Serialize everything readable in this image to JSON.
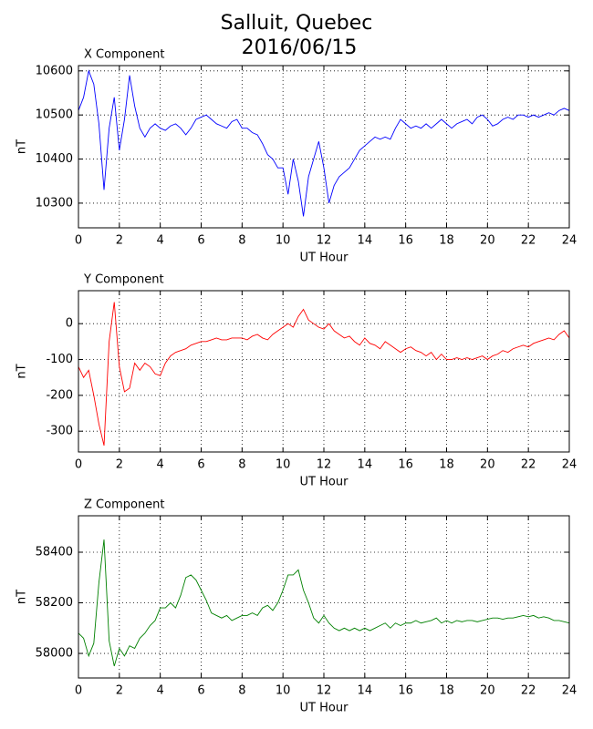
{
  "title": "Salluit, Quebec",
  "subtitle": "2016/06/15",
  "chart_data": [
    {
      "type": "line",
      "title": "X Component",
      "xlabel": "UT Hour",
      "ylabel": "nT",
      "x": [
        0,
        0.25,
        0.5,
        0.75,
        1,
        1.25,
        1.5,
        1.75,
        2,
        2.25,
        2.5,
        2.75,
        3,
        3.25,
        3.5,
        3.75,
        4,
        4.25,
        4.5,
        4.75,
        5,
        5.25,
        5.5,
        5.75,
        6,
        6.25,
        6.5,
        6.75,
        7,
        7.25,
        7.5,
        7.75,
        8,
        8.25,
        8.5,
        8.75,
        9,
        9.25,
        9.5,
        9.75,
        10,
        10.25,
        10.5,
        10.75,
        11,
        11.25,
        11.5,
        11.75,
        12,
        12.25,
        12.5,
        12.75,
        13,
        13.25,
        13.5,
        13.75,
        14,
        14.25,
        14.5,
        14.75,
        15,
        15.25,
        15.5,
        15.75,
        16,
        16.25,
        16.5,
        16.75,
        17,
        17.25,
        17.5,
        17.75,
        18,
        18.25,
        18.5,
        18.75,
        19,
        19.25,
        19.5,
        19.75,
        20,
        20.25,
        20.5,
        20.75,
        21,
        21.25,
        21.5,
        21.75,
        22,
        22.25,
        22.5,
        22.75,
        23,
        23.25,
        23.5,
        23.75,
        24
      ],
      "series": [
        {
          "color": "#0000ff",
          "values": [
            10510,
            10540,
            10600,
            10570,
            10480,
            10330,
            10470,
            10540,
            10420,
            10490,
            10590,
            10520,
            10470,
            10450,
            10470,
            10480,
            10470,
            10465,
            10475,
            10480,
            10470,
            10455,
            10470,
            10490,
            10495,
            10500,
            10490,
            10480,
            10475,
            10470,
            10485,
            10490,
            10470,
            10470,
            10460,
            10455,
            10435,
            10410,
            10400,
            10380,
            10380,
            10320,
            10400,
            10350,
            10270,
            10360,
            10400,
            10440,
            10380,
            10300,
            10340,
            10360,
            10370,
            10380,
            10400,
            10420,
            10430,
            10440,
            10450,
            10445,
            10450,
            10445,
            10470,
            10490,
            10480,
            10470,
            10475,
            10470,
            10480,
            10470,
            10480,
            10490,
            10480,
            10470,
            10480,
            10485,
            10490,
            10480,
            10495,
            10500,
            10490,
            10475,
            10480,
            10490,
            10495,
            10490,
            10500,
            10500,
            10495,
            10500,
            10495,
            10500,
            10505,
            10500,
            10510,
            10515,
            10510
          ]
        }
      ],
      "xlim": [
        0,
        24
      ],
      "xticks": [
        0,
        2,
        4,
        6,
        8,
        10,
        12,
        14,
        16,
        18,
        20,
        22,
        24
      ],
      "ylim": [
        10244,
        10612
      ],
      "yticks": [
        10300,
        10400,
        10500,
        10600
      ],
      "grid": true
    },
    {
      "type": "line",
      "title": "Y Component",
      "xlabel": "UT Hour",
      "ylabel": "nT",
      "x": [
        0,
        0.25,
        0.5,
        0.75,
        1,
        1.25,
        1.5,
        1.75,
        2,
        2.25,
        2.5,
        2.75,
        3,
        3.25,
        3.5,
        3.75,
        4,
        4.25,
        4.5,
        4.75,
        5,
        5.25,
        5.5,
        5.75,
        6,
        6.25,
        6.5,
        6.75,
        7,
        7.25,
        7.5,
        7.75,
        8,
        8.25,
        8.5,
        8.75,
        9,
        9.25,
        9.5,
        9.75,
        10,
        10.25,
        10.5,
        10.75,
        11,
        11.25,
        11.5,
        11.75,
        12,
        12.25,
        12.5,
        12.75,
        13,
        13.25,
        13.5,
        13.75,
        14,
        14.25,
        14.5,
        14.75,
        15,
        15.25,
        15.5,
        15.75,
        16,
        16.25,
        16.5,
        16.75,
        17,
        17.25,
        17.5,
        17.75,
        18,
        18.25,
        18.5,
        18.75,
        19,
        19.25,
        19.5,
        19.75,
        20,
        20.25,
        20.5,
        20.75,
        21,
        21.25,
        21.5,
        21.75,
        22,
        22.25,
        22.5,
        22.75,
        23,
        23.25,
        23.5,
        23.75,
        24
      ],
      "series": [
        {
          "color": "#ff0000",
          "values": [
            -120,
            -150,
            -130,
            -200,
            -280,
            -340,
            -50,
            60,
            -120,
            -190,
            -180,
            -110,
            -130,
            -110,
            -120,
            -140,
            -145,
            -110,
            -90,
            -80,
            -75,
            -70,
            -60,
            -55,
            -50,
            -50,
            -45,
            -40,
            -45,
            -45,
            -40,
            -40,
            -40,
            -45,
            -35,
            -30,
            -40,
            -45,
            -30,
            -20,
            -10,
            0,
            -10,
            20,
            40,
            10,
            0,
            -10,
            -15,
            0,
            -20,
            -30,
            -40,
            -35,
            -50,
            -60,
            -40,
            -55,
            -60,
            -70,
            -50,
            -60,
            -70,
            -80,
            -70,
            -65,
            -75,
            -80,
            -90,
            -80,
            -100,
            -85,
            -100,
            -100,
            -95,
            -100,
            -95,
            -100,
            -95,
            -90,
            -100,
            -90,
            -85,
            -75,
            -80,
            -70,
            -65,
            -60,
            -65,
            -55,
            -50,
            -45,
            -40,
            -45,
            -30,
            -20,
            -40
          ]
        }
      ],
      "xlim": [
        0,
        24
      ],
      "xticks": [
        0,
        2,
        4,
        6,
        8,
        10,
        12,
        14,
        16,
        18,
        20,
        22,
        24
      ],
      "ylim": [
        -358,
        92
      ],
      "yticks": [
        -300,
        -200,
        -100,
        0
      ],
      "grid": true
    },
    {
      "type": "line",
      "title": "Z Component",
      "xlabel": "UT Hour",
      "ylabel": "nT",
      "x": [
        0,
        0.25,
        0.5,
        0.75,
        1,
        1.25,
        1.5,
        1.75,
        2,
        2.25,
        2.5,
        2.75,
        3,
        3.25,
        3.5,
        3.75,
        4,
        4.25,
        4.5,
        4.75,
        5,
        5.25,
        5.5,
        5.75,
        6,
        6.25,
        6.5,
        6.75,
        7,
        7.25,
        7.5,
        7.75,
        8,
        8.25,
        8.5,
        8.75,
        9,
        9.25,
        9.5,
        9.75,
        10,
        10.25,
        10.5,
        10.75,
        11,
        11.25,
        11.5,
        11.75,
        12,
        12.25,
        12.5,
        12.75,
        13,
        13.25,
        13.5,
        13.75,
        14,
        14.25,
        14.5,
        14.75,
        15,
        15.25,
        15.5,
        15.75,
        16,
        16.25,
        16.5,
        16.75,
        17,
        17.25,
        17.5,
        17.75,
        18,
        18.25,
        18.5,
        18.75,
        19,
        19.25,
        19.5,
        19.75,
        20,
        20.25,
        20.5,
        20.75,
        21,
        21.25,
        21.5,
        21.75,
        22,
        22.25,
        22.5,
        22.75,
        23,
        23.25,
        23.5,
        23.75,
        24
      ],
      "series": [
        {
          "color": "#008000",
          "values": [
            58080,
            58060,
            57990,
            58040,
            58280,
            58450,
            58050,
            57950,
            58020,
            57990,
            58030,
            58020,
            58060,
            58080,
            58110,
            58130,
            58180,
            58180,
            58200,
            58180,
            58230,
            58300,
            58310,
            58290,
            58250,
            58210,
            58160,
            58150,
            58140,
            58150,
            58130,
            58140,
            58150,
            58150,
            58160,
            58150,
            58180,
            58190,
            58170,
            58200,
            58250,
            58310,
            58310,
            58330,
            58250,
            58200,
            58140,
            58120,
            58150,
            58120,
            58100,
            58090,
            58100,
            58090,
            58100,
            58090,
            58100,
            58090,
            58100,
            58110,
            58120,
            58100,
            58120,
            58110,
            58120,
            58120,
            58130,
            58120,
            58125,
            58130,
            58140,
            58120,
            58130,
            58120,
            58130,
            58125,
            58130,
            58130,
            58125,
            58130,
            58135,
            58140,
            58140,
            58135,
            58140,
            58140,
            58145,
            58150,
            58145,
            58150,
            58140,
            58145,
            58140,
            58130,
            58130,
            58125,
            58120
          ]
        }
      ],
      "xlim": [
        0,
        24
      ],
      "xticks": [
        0,
        2,
        4,
        6,
        8,
        10,
        12,
        14,
        16,
        18,
        20,
        22,
        24
      ],
      "ylim": [
        57903,
        58544
      ],
      "yticks": [
        58000,
        58200,
        58400
      ],
      "grid": true
    }
  ]
}
